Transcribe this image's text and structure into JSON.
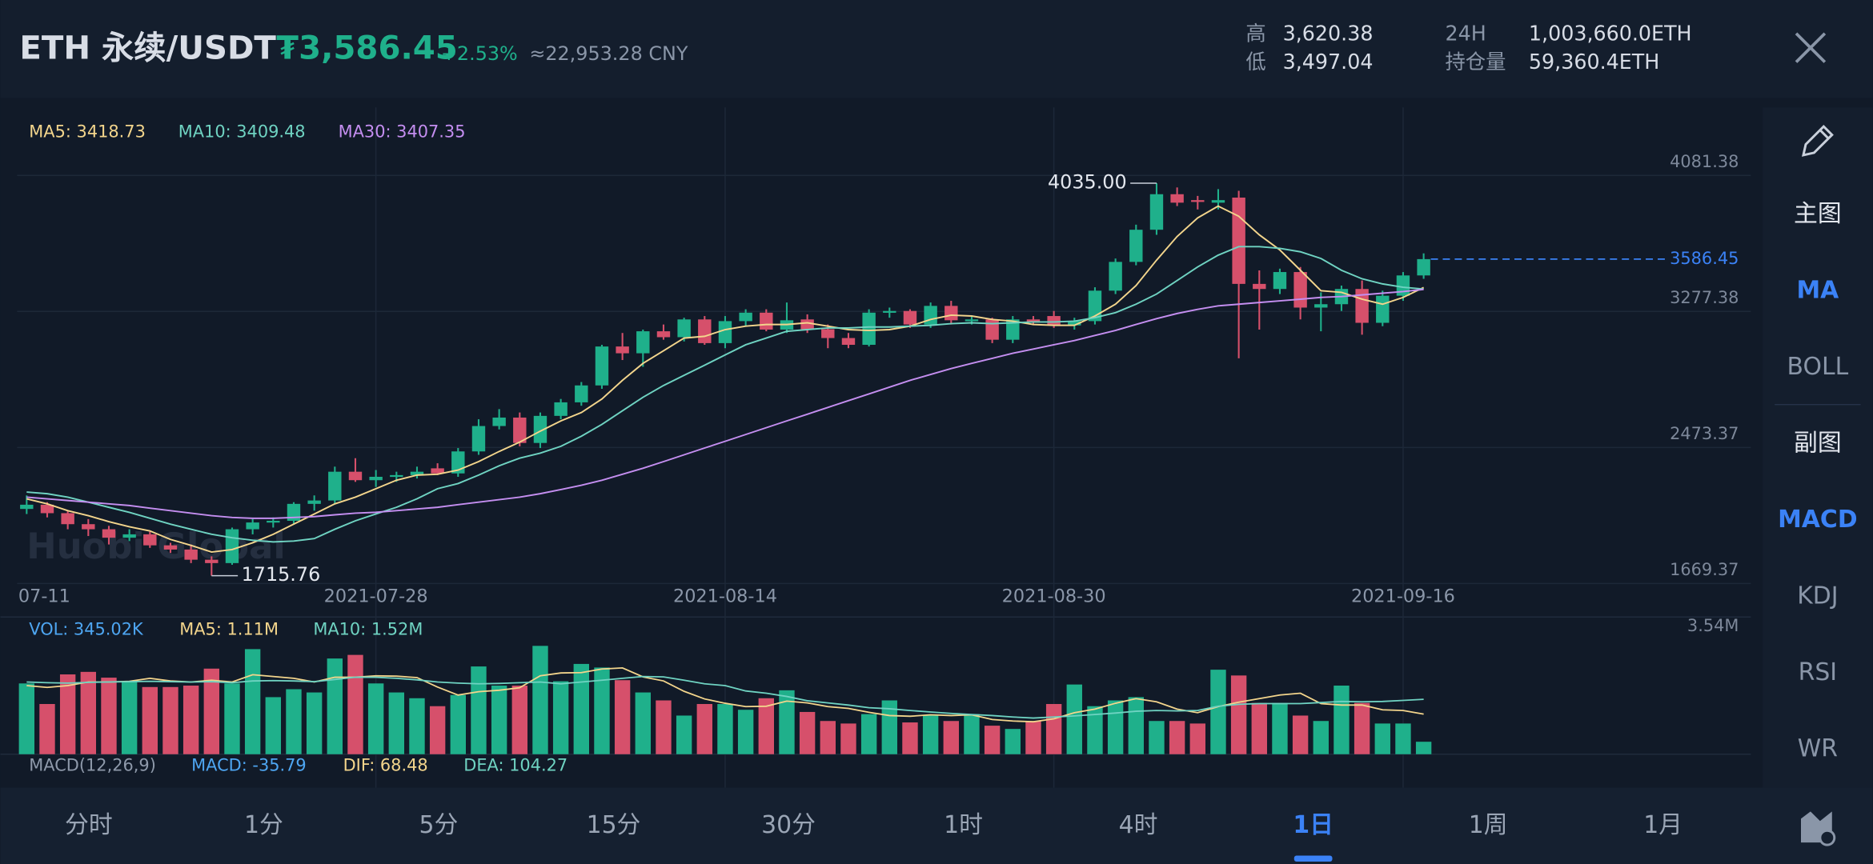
{
  "header": {
    "symbol": "ETH 永续/USDT",
    "price": "₮3,586.45",
    "change": "+2.53%",
    "cny": "≈22,953.28 CNY",
    "stats": [
      {
        "label": "高",
        "value": "3,620.38"
      },
      {
        "label": "低",
        "value": "3,497.04"
      },
      {
        "label": "24H",
        "value": "1,003,660.0ETH"
      },
      {
        "label": "持仓量",
        "value": "59,360.4ETH"
      }
    ]
  },
  "sidebar": {
    "main_heading": "主图",
    "main_indicators": [
      "MA",
      "BOLL"
    ],
    "sub_heading": "副图",
    "sub_indicators": [
      "MACD",
      "KDJ",
      "RSI",
      "WR"
    ],
    "active": [
      "MA",
      "MACD"
    ]
  },
  "timeframes": [
    "分时",
    "1分",
    "5分",
    "15分",
    "30分",
    "1时",
    "4时",
    "1日",
    "1周",
    "1月"
  ],
  "active_timeframe": "1日",
  "watermark": "Huobi Global",
  "macd_legend": [
    {
      "text": "MACD(12,26,9)",
      "color": "#8e99aa"
    },
    {
      "text": "MACD: -35.79",
      "color": "#4ea6f2"
    },
    {
      "text": "DIF: 68.48",
      "color": "#f3d58c"
    },
    {
      "text": "DEA: 104.27",
      "color": "#6fd3c2"
    }
  ],
  "chart_data": [
    {
      "type": "candlestick",
      "up_color": "#1fb08b",
      "down_color": "#d6506b",
      "grid": true,
      "categories": [
        "07-11",
        null,
        null,
        null,
        null,
        null,
        null,
        null,
        null,
        null,
        null,
        null,
        null,
        null,
        null,
        null,
        null,
        "2021-07-28",
        null,
        null,
        null,
        null,
        null,
        null,
        null,
        null,
        null,
        null,
        null,
        null,
        null,
        null,
        null,
        null,
        "2021-08-14",
        null,
        null,
        null,
        null,
        null,
        null,
        null,
        null,
        null,
        null,
        null,
        null,
        null,
        null,
        null,
        "2021-08-30",
        null,
        null,
        null,
        null,
        null,
        null,
        null,
        null,
        null,
        null,
        null,
        null,
        null,
        null,
        null,
        null,
        "2021-09-16",
        null
      ],
      "open": [
        2110,
        2135,
        2085,
        2020,
        1990,
        1940,
        1960,
        1895,
        1870,
        1810,
        1790,
        1990,
        2030,
        2040,
        2140,
        2160,
        2330,
        2280,
        2300,
        2310,
        2350,
        2320,
        2450,
        2600,
        2650,
        2500,
        2660,
        2740,
        2840,
        3070,
        3030,
        3160,
        3125,
        3230,
        3090,
        3220,
        3270,
        3170,
        3230,
        3172,
        3120,
        3080,
        3270,
        3280,
        3200,
        3310,
        3225,
        3230,
        3110,
        3230,
        3250,
        3195,
        3220,
        3400,
        3570,
        3760,
        3970,
        3935,
        3920,
        3950,
        3440,
        3410,
        3510,
        3300,
        3320,
        3410,
        3210,
        3370,
        3490
      ],
      "high": [
        2190,
        2150,
        2100,
        2050,
        2010,
        1990,
        1975,
        1910,
        1900,
        1830,
        2000,
        2050,
        2060,
        2150,
        2190,
        2360,
        2410,
        2340,
        2330,
        2360,
        2380,
        2470,
        2640,
        2700,
        2680,
        2680,
        2760,
        2860,
        3080,
        3150,
        3170,
        3200,
        3240,
        3250,
        3250,
        3290,
        3290,
        3330,
        3260,
        3200,
        3150,
        3290,
        3300,
        3290,
        3330,
        3340,
        3250,
        3240,
        3250,
        3250,
        3280,
        3240,
        3420,
        3590,
        3790,
        4035,
        4010,
        3960,
        4000,
        3990,
        3520,
        3530,
        3540,
        3390,
        3430,
        3460,
        3400,
        3510,
        3620.38
      ],
      "low": [
        2080,
        2060,
        1990,
        1950,
        1900,
        1920,
        1880,
        1850,
        1790,
        1715.76,
        1780,
        1960,
        2000,
        2020,
        2100,
        2140,
        2270,
        2240,
        2270,
        2290,
        2310,
        2300,
        2430,
        2580,
        2480,
        2470,
        2640,
        2720,
        2820,
        2990,
        2950,
        3110,
        3100,
        3080,
        3060,
        3190,
        3160,
        3150,
        3150,
        3060,
        3060,
        3070,
        3240,
        3180,
        3180,
        3200,
        3200,
        3090,
        3090,
        3200,
        3180,
        3170,
        3200,
        3380,
        3550,
        3730,
        3900,
        3880,
        3880,
        3000,
        3170,
        3380,
        3230,
        3160,
        3280,
        3140,
        3190,
        3340,
        3470
      ],
      "close": [
        2135,
        2085,
        2020,
        1990,
        1940,
        1960,
        1895,
        1870,
        1810,
        1790,
        1990,
        2030,
        2040,
        2140,
        2160,
        2330,
        2280,
        2300,
        2310,
        2330,
        2320,
        2450,
        2600,
        2650,
        2500,
        2660,
        2740,
        2840,
        3070,
        3030,
        3160,
        3125,
        3230,
        3090,
        3220,
        3270,
        3170,
        3225,
        3172,
        3120,
        3080,
        3270,
        3280,
        3200,
        3310,
        3225,
        3230,
        3110,
        3230,
        3215,
        3195,
        3220,
        3400,
        3570,
        3760,
        3970,
        3920,
        3925,
        3935,
        3440,
        3410,
        3510,
        3300,
        3320,
        3410,
        3210,
        3370,
        3490,
        3586.45
      ],
      "series": [
        {
          "name": "MA5: 3418.73",
          "color": "#f3d58c",
          "values": [
            2170,
            2140,
            2100,
            2070,
            2035,
            2005,
            1980,
            1930,
            1895,
            1855,
            1870,
            1910,
            1960,
            2020,
            2080,
            2140,
            2180,
            2230,
            2280,
            2310,
            2315,
            2340,
            2390,
            2450,
            2505,
            2570,
            2630,
            2680,
            2760,
            2870,
            2970,
            3045,
            3120,
            3130,
            3170,
            3190,
            3200,
            3200,
            3210,
            3190,
            3170,
            3165,
            3170,
            3190,
            3230,
            3255,
            3250,
            3230,
            3220,
            3200,
            3195,
            3195,
            3250,
            3320,
            3430,
            3580,
            3720,
            3830,
            3900,
            3840,
            3730,
            3640,
            3520,
            3400,
            3390,
            3350,
            3320,
            3360,
            3418.73
          ]
        },
        {
          "name": "MA10: 3409.48",
          "color": "#6fd3c2",
          "values": [
            2210,
            2200,
            2180,
            2150,
            2120,
            2090,
            2055,
            2020,
            1990,
            1960,
            1940,
            1925,
            1915,
            1920,
            1935,
            1990,
            2040,
            2080,
            2120,
            2170,
            2230,
            2260,
            2310,
            2365,
            2410,
            2440,
            2480,
            2540,
            2610,
            2690,
            2770,
            2840,
            2900,
            2960,
            3020,
            3080,
            3120,
            3160,
            3170,
            3180,
            3180,
            3185,
            3185,
            3190,
            3195,
            3205,
            3210,
            3205,
            3210,
            3215,
            3215,
            3220,
            3240,
            3270,
            3320,
            3380,
            3460,
            3540,
            3610,
            3660,
            3660,
            3650,
            3630,
            3590,
            3520,
            3470,
            3440,
            3420,
            3409.48
          ]
        },
        {
          "name": "MA30: 3407.35",
          "color": "#c48ef0",
          "values": [
            2180,
            2170,
            2160,
            2150,
            2140,
            2130,
            2115,
            2100,
            2085,
            2070,
            2060,
            2055,
            2055,
            2060,
            2065,
            2075,
            2085,
            2090,
            2100,
            2110,
            2120,
            2135,
            2150,
            2165,
            2180,
            2200,
            2225,
            2250,
            2280,
            2315,
            2350,
            2390,
            2430,
            2470,
            2510,
            2550,
            2590,
            2630,
            2670,
            2710,
            2750,
            2790,
            2830,
            2870,
            2905,
            2940,
            2970,
            3000,
            3030,
            3055,
            3080,
            3105,
            3135,
            3165,
            3200,
            3235,
            3265,
            3290,
            3310,
            3320,
            3330,
            3340,
            3350,
            3360,
            3365,
            3375,
            3385,
            3395,
            3407.35
          ]
        }
      ],
      "ylim": [
        1662,
        4483
      ],
      "yticks": [
        1669.37,
        2473.37,
        3277.38,
        4081.38
      ],
      "annotations": [
        {
          "value": 4035,
          "label": "4035.00"
        },
        {
          "value": 1715.76,
          "label": "1715.76"
        }
      ],
      "last_price": 3586.45,
      "last_price_color": "#3b82f6"
    },
    {
      "type": "bar",
      "series": [
        {
          "name": "VOL: 345.02K",
          "color": "#4ea6f2",
          "values": [
            1960000,
            1390000,
            2210000,
            2280000,
            2120000,
            2020000,
            1860000,
            1860000,
            1900000,
            2370000,
            1960000,
            2910000,
            1580000,
            1800000,
            1710000,
            2650000,
            2750000,
            1960000,
            1710000,
            1550000,
            1330000,
            1640000,
            2430000,
            1900000,
            1900000,
            3000000,
            2020000,
            2500000,
            2400000,
            2050000,
            1710000,
            1490000,
            1070000,
            1390000,
            1390000,
            1230000,
            1550000,
            1770000,
            1170000,
            920000,
            850000,
            1110000,
            1490000,
            880000,
            1070000,
            920000,
            1110000,
            790000,
            700000,
            920000,
            1390000,
            1930000,
            1330000,
            1490000,
            1580000,
            920000,
            920000,
            850000,
            2340000,
            2180000,
            1420000,
            1420000,
            1070000,
            920000,
            1900000,
            1420000,
            850000,
            850000,
            345020
          ]
        },
        {
          "name": "MA5: 1.11M",
          "color": "#f3d58c",
          "values": [
            1900000,
            1850000,
            1900000,
            2000000,
            2000000,
            2020000,
            2100000,
            2030000,
            2000000,
            2050000,
            2000000,
            2200000,
            2150000,
            2100000,
            2000000,
            2130000,
            2130000,
            2170000,
            2160000,
            2120000,
            1860000,
            1640000,
            1730000,
            1770000,
            1840000,
            2170000,
            2250000,
            2260000,
            2360000,
            2390000,
            2140000,
            2030000,
            1740000,
            1530000,
            1410000,
            1320000,
            1330000,
            1470000,
            1420000,
            1320000,
            1270000,
            1160000,
            1070000,
            1050000,
            1090000,
            1070000,
            1090000,
            960000,
            920000,
            900000,
            980000,
            1150000,
            1250000,
            1410000,
            1540000,
            1450000,
            1250000,
            1150000,
            1320000,
            1440000,
            1540000,
            1640000,
            1690000,
            1400000,
            1360000,
            1360000,
            1230000,
            1210000,
            1110000
          ]
        },
        {
          "name": "MA10: 1.52M",
          "color": "#6fd3c2",
          "values": [
            2000000,
            1980000,
            1970000,
            1990000,
            2000000,
            2010000,
            2020000,
            2010000,
            2000000,
            2010000,
            1980000,
            2030000,
            2040000,
            2030000,
            2010000,
            2070000,
            2130000,
            2130000,
            2100000,
            2060000,
            2000000,
            1970000,
            1950000,
            1960000,
            1980000,
            2000000,
            1950000,
            2000000,
            2050000,
            2100000,
            2150000,
            2140000,
            2050000,
            1950000,
            1900000,
            1750000,
            1690000,
            1600000,
            1480000,
            1420000,
            1360000,
            1290000,
            1260000,
            1210000,
            1170000,
            1130000,
            1100000,
            1070000,
            1030000,
            1000000,
            1030000,
            1060000,
            1100000,
            1140000,
            1190000,
            1210000,
            1200000,
            1210000,
            1330000,
            1380000,
            1400000,
            1400000,
            1400000,
            1430000,
            1460000,
            1450000,
            1460000,
            1490000,
            1520000
          ]
        }
      ],
      "ylim": [
        0,
        3800000
      ],
      "yticks": [
        {
          "value": 3540000,
          "label": "3.54M"
        }
      ]
    }
  ]
}
